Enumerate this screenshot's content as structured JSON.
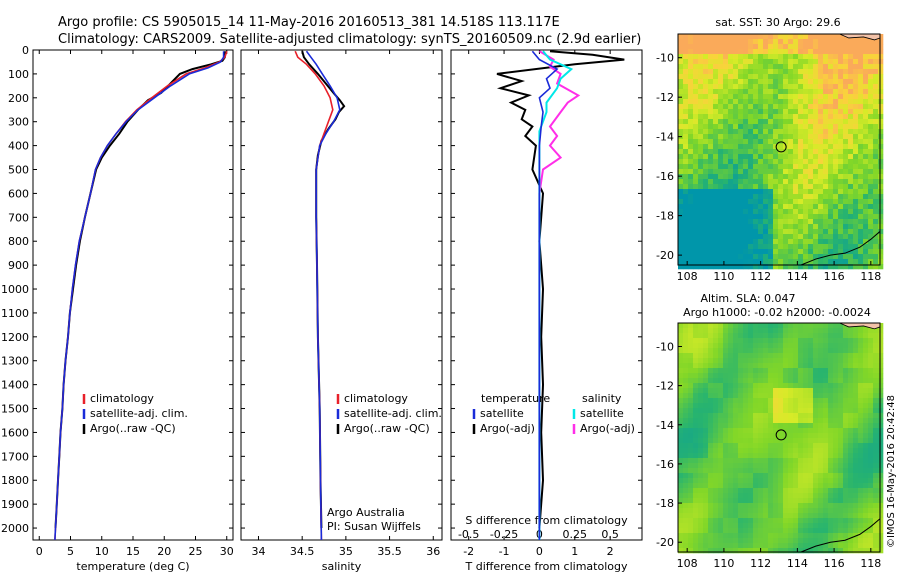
{
  "header": {
    "title_line1": "Argo profile: CS 5905015_14 11-May-2016 20160513_381 14.518S 113.117E",
    "title_line2": "Climatology: CARS2009. Satellite-adjusted climatology: synTS_20160509.nc (2.9d earlier)"
  },
  "side_stamp": "©IMOS 16-May-2016 20:42:48",
  "colors": {
    "climatology": "#e8202a",
    "satellite": "#1a2bd8",
    "argo": "#000000",
    "satellite_s": "#00e8e8",
    "argo_s": "#ff2ee8",
    "map_coast": "#000000",
    "land": "#f3c2a8"
  },
  "chart_data": [
    {
      "type": "line",
      "panel": "temperature",
      "xlabel": "temperature (deg C)",
      "xlim": [
        -1,
        31
      ],
      "xticks": [
        "0",
        "5",
        "10",
        "15",
        "20",
        "25",
        "30"
      ],
      "ylim": [
        2050,
        0
      ],
      "yticks": [
        "0",
        "100",
        "200",
        "300",
        "400",
        "500",
        "600",
        "700",
        "800",
        "900",
        "1000",
        "1100",
        "1200",
        "1300",
        "1400",
        "1500",
        "1600",
        "1700",
        "1800",
        "1900",
        "2000"
      ],
      "legend": [
        "climatology",
        "satellite-adj. clim.",
        "Argo(..raw -QC)"
      ],
      "series": [
        {
          "name": "climatology",
          "points": [
            [
              30.0,
              5
            ],
            [
              29.7,
              30
            ],
            [
              28.8,
              50
            ],
            [
              26.5,
              75
            ],
            [
              23.5,
              100
            ],
            [
              20.5,
              150
            ],
            [
              18.0,
              200
            ],
            [
              15.6,
              250
            ],
            [
              13.8,
              300
            ],
            [
              12.3,
              350
            ],
            [
              10.9,
              400
            ],
            [
              9.8,
              450
            ],
            [
              9.0,
              500
            ],
            [
              8.2,
              600
            ],
            [
              7.3,
              700
            ],
            [
              6.4,
              800
            ],
            [
              5.8,
              900
            ],
            [
              5.3,
              1000
            ],
            [
              4.9,
              1100
            ],
            [
              4.6,
              1200
            ],
            [
              4.2,
              1300
            ],
            [
              3.9,
              1400
            ],
            [
              3.7,
              1500
            ],
            [
              3.4,
              1600
            ],
            [
              3.2,
              1700
            ],
            [
              3.0,
              1800
            ],
            [
              2.8,
              1900
            ],
            [
              2.6,
              2000
            ],
            [
              2.5,
              2050
            ]
          ]
        },
        {
          "name": "satellite-adj. clim.",
          "points": [
            [
              29.5,
              5
            ],
            [
              29.5,
              30
            ],
            [
              29.0,
              50
            ],
            [
              27.0,
              75
            ],
            [
              24.0,
              100
            ],
            [
              21.0,
              150
            ],
            [
              18.4,
              200
            ],
            [
              15.8,
              250
            ],
            [
              13.9,
              300
            ],
            [
              12.3,
              350
            ],
            [
              10.9,
              400
            ],
            [
              9.8,
              450
            ],
            [
              9.0,
              500
            ],
            [
              8.2,
              600
            ],
            [
              7.3,
              700
            ],
            [
              6.4,
              800
            ],
            [
              5.8,
              900
            ],
            [
              5.3,
              1000
            ],
            [
              4.9,
              1100
            ],
            [
              4.6,
              1200
            ],
            [
              4.2,
              1300
            ],
            [
              3.9,
              1400
            ],
            [
              3.7,
              1500
            ],
            [
              3.4,
              1600
            ],
            [
              3.2,
              1700
            ],
            [
              3.0,
              1800
            ],
            [
              2.8,
              1900
            ],
            [
              2.6,
              2000
            ],
            [
              2.5,
              2050
            ]
          ]
        },
        {
          "name": "Argo(..raw -QC)",
          "points": [
            [
              29.7,
              5
            ],
            [
              29.7,
              30
            ],
            [
              29.3,
              45
            ],
            [
              27.5,
              60
            ],
            [
              24.5,
              80
            ],
            [
              22.5,
              100
            ],
            [
              21.0,
              140
            ],
            [
              19.5,
              180
            ],
            [
              17.4,
              210
            ],
            [
              15.8,
              250
            ],
            [
              14.1,
              300
            ],
            [
              12.8,
              350
            ],
            [
              11.3,
              400
            ],
            [
              10.0,
              450
            ],
            [
              9.1,
              500
            ],
            [
              8.2,
              600
            ],
            [
              7.3,
              700
            ],
            [
              6.5,
              800
            ],
            [
              5.9,
              900
            ],
            [
              5.4,
              1000
            ],
            [
              4.9,
              1100
            ],
            [
              4.6,
              1200
            ],
            [
              4.2,
              1300
            ],
            [
              3.9,
              1400
            ],
            [
              3.7,
              1500
            ],
            [
              3.4,
              1600
            ],
            [
              3.2,
              1700
            ],
            [
              3.0,
              1800
            ],
            [
              2.8,
              1900
            ],
            [
              2.6,
              2000
            ]
          ]
        }
      ]
    },
    {
      "type": "line",
      "panel": "salinity",
      "xlabel": "salinity",
      "xlim": [
        33.8,
        36.1
      ],
      "xticks": [
        "34",
        "34.5",
        "35",
        "35.5",
        "36"
      ],
      "ylim": [
        2050,
        0
      ],
      "legend": [
        "climatology",
        "satellite-adj. clim.",
        "Argo(..raw -QC)"
      ],
      "annotation": [
        "Argo Australia",
        "PI: Susan Wijffels"
      ],
      "series": [
        {
          "name": "climatology",
          "points": [
            [
              34.42,
              5
            ],
            [
              34.45,
              30
            ],
            [
              34.55,
              60
            ],
            [
              34.65,
              100
            ],
            [
              34.75,
              150
            ],
            [
              34.82,
              200
            ],
            [
              34.85,
              250
            ],
            [
              34.8,
              300
            ],
            [
              34.75,
              350
            ],
            [
              34.7,
              400
            ],
            [
              34.66,
              500
            ],
            [
              34.66,
              700
            ],
            [
              34.67,
              900
            ],
            [
              34.68,
              1200
            ],
            [
              34.7,
              1500
            ],
            [
              34.71,
              1800
            ],
            [
              34.72,
              2050
            ]
          ]
        },
        {
          "name": "satellite-adj. clim.",
          "points": [
            [
              34.55,
              5
            ],
            [
              34.6,
              30
            ],
            [
              34.66,
              60
            ],
            [
              34.73,
              100
            ],
            [
              34.82,
              150
            ],
            [
              34.9,
              200
            ],
            [
              34.93,
              250
            ],
            [
              34.86,
              300
            ],
            [
              34.77,
              350
            ],
            [
              34.7,
              400
            ],
            [
              34.66,
              500
            ],
            [
              34.66,
              700
            ],
            [
              34.67,
              900
            ],
            [
              34.68,
              1200
            ],
            [
              34.7,
              1500
            ],
            [
              34.71,
              1800
            ],
            [
              34.72,
              2050
            ]
          ]
        },
        {
          "name": "Argo(..raw -QC)",
          "points": [
            [
              34.5,
              5
            ],
            [
              34.52,
              30
            ],
            [
              34.58,
              60
            ],
            [
              34.68,
              100
            ],
            [
              34.77,
              140
            ],
            [
              34.86,
              180
            ],
            [
              34.93,
              210
            ],
            [
              34.98,
              235
            ],
            [
              34.92,
              260
            ],
            [
              34.88,
              290
            ],
            [
              34.8,
              330
            ],
            [
              34.72,
              380
            ],
            [
              34.68,
              440
            ],
            [
              34.66,
              500
            ],
            [
              34.66,
              700
            ],
            [
              34.67,
              900
            ],
            [
              34.68,
              1200
            ],
            [
              34.7,
              1500
            ],
            [
              34.71,
              1800
            ],
            [
              34.72,
              2000
            ]
          ]
        }
      ]
    },
    {
      "type": "line",
      "panel": "difference",
      "xlabel": "T difference from climatology",
      "xlabel_top": "S difference from climatology",
      "xlim": [
        -2.5,
        2.9
      ],
      "xticks": [
        "-2",
        "-1",
        "0",
        "1",
        "2"
      ],
      "xticks_s": [
        "-0.5",
        "-0.25",
        "0",
        "0.25",
        "0.5"
      ],
      "ylim": [
        2050,
        0
      ],
      "legend_t": {
        "title": "temperature",
        "items": [
          "satellite",
          "Argo(-adj)"
        ]
      },
      "legend_s": {
        "title": "salinity",
        "items": [
          "satellite",
          "Argo(-adj)"
        ]
      },
      "series": [
        {
          "name": "satellite",
          "points": [
            [
              -0.2,
              5
            ],
            [
              0.0,
              40
            ],
            [
              0.5,
              80
            ],
            [
              0.2,
              120
            ],
            [
              0.3,
              160
            ],
            [
              0.0,
              200
            ],
            [
              0.1,
              260
            ],
            [
              0.05,
              320
            ],
            [
              0.0,
              400
            ],
            [
              0.0,
              600
            ],
            [
              0.0,
              900
            ],
            [
              0.0,
              1200
            ],
            [
              0.0,
              1500
            ],
            [
              0.0,
              1800
            ],
            [
              0.0,
              2050
            ]
          ]
        },
        {
          "name": "Argo(-adj)",
          "points": [
            [
              0.3,
              5
            ],
            [
              1.5,
              20
            ],
            [
              2.4,
              40
            ],
            [
              1.0,
              60
            ],
            [
              -1.2,
              100
            ],
            [
              -0.5,
              130
            ],
            [
              -1.1,
              160
            ],
            [
              -0.3,
              190
            ],
            [
              -0.8,
              220
            ],
            [
              -0.4,
              250
            ],
            [
              -0.5,
              290
            ],
            [
              -0.2,
              320
            ],
            [
              -0.4,
              360
            ],
            [
              -0.1,
              400
            ],
            [
              -0.2,
              500
            ],
            [
              0.1,
              600
            ],
            [
              0.0,
              800
            ],
            [
              0.1,
              1000
            ],
            [
              0.05,
              1200
            ],
            [
              0.1,
              1400
            ],
            [
              0.05,
              1600
            ],
            [
              0.1,
              1800
            ],
            [
              0.0,
              2000
            ]
          ]
        },
        {
          "name": "satellite salinity",
          "points": [
            [
              0.1,
              5
            ],
            [
              0.3,
              40
            ],
            [
              0.9,
              80
            ],
            [
              0.6,
              120
            ],
            [
              0.5,
              160
            ],
            [
              0.2,
              220
            ],
            [
              0.2,
              260
            ],
            [
              0.0,
              340
            ],
            [
              0.0,
              500
            ],
            [
              0.0,
              900
            ],
            [
              0.0,
              1300
            ],
            [
              0.0,
              1700
            ],
            [
              0.0,
              2050
            ]
          ]
        },
        {
          "name": "Argo(-adj) salinity",
          "points": [
            [
              0.0,
              5
            ],
            [
              0.4,
              40
            ],
            [
              0.3,
              70
            ],
            [
              0.6,
              100
            ],
            [
              0.5,
              140
            ],
            [
              1.1,
              190
            ],
            [
              0.8,
              220
            ],
            [
              0.6,
              260
            ],
            [
              0.3,
              320
            ],
            [
              0.5,
              360
            ],
            [
              0.3,
              400
            ],
            [
              0.6,
              450
            ],
            [
              0.1,
              500
            ],
            [
              0.0,
              600
            ],
            [
              0.0,
              900
            ],
            [
              0.0,
              1200
            ],
            [
              0.0,
              1500
            ],
            [
              0.0,
              1800
            ],
            [
              0.0,
              2000
            ]
          ]
        }
      ]
    },
    {
      "type": "heatmap",
      "panel": "sst_map",
      "title": "sat. SST: 30 Argo: 29.6",
      "xticks": [
        "108",
        "110",
        "112",
        "114",
        "116",
        "118"
      ],
      "yticks": [
        "-10",
        "-12",
        "-14",
        "-16",
        "-18",
        "-20"
      ],
      "xlim": [
        107.5,
        118.5
      ],
      "ylim": [
        -20.5,
        -8.8
      ],
      "profile_location": {
        "lon": 113.117,
        "lat": -14.518
      }
    },
    {
      "type": "heatmap",
      "panel": "sla_map",
      "title_line1": "Altim. SLA: 0.047",
      "title_line2": "Argo h1000: -0.02 h2000: -0.0024",
      "xticks": [
        "108",
        "110",
        "112",
        "114",
        "116",
        "118"
      ],
      "yticks": [
        "-10",
        "-12",
        "-14",
        "-16",
        "-18",
        "-20"
      ],
      "xlim": [
        107.5,
        118.5
      ],
      "ylim": [
        -20.5,
        -8.8
      ],
      "profile_location": {
        "lon": 113.117,
        "lat": -14.518
      }
    }
  ]
}
